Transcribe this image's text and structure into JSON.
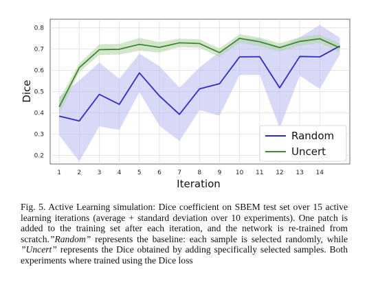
{
  "chart_data": {
    "type": "line",
    "xlabel": "Iteration",
    "ylabel": "Dice",
    "x": [
      1,
      2,
      3,
      4,
      5,
      6,
      7,
      8,
      9,
      10,
      11,
      12,
      13,
      14,
      15
    ],
    "x_tick_labels": [
      "1",
      "2",
      "3",
      "4",
      "5",
      "6",
      "7",
      "8",
      "9",
      "10",
      "11",
      "12",
      "13",
      "14"
    ],
    "y_ticks": [
      "0.2",
      "0.3",
      "0.4",
      "0.5",
      "0.6",
      "0.7",
      "0.8"
    ],
    "ylim": [
      0.16,
      0.84
    ],
    "xlim": [
      0.55,
      15.5
    ],
    "grid": true,
    "legend_position": "lower-right",
    "series": [
      {
        "name": "Random",
        "color": "#2a2ad0",
        "band_color": "#b8b8f0",
        "values": [
          0.385,
          0.362,
          0.487,
          0.44,
          0.588,
          0.48,
          0.393,
          0.513,
          0.537,
          0.663,
          0.664,
          0.518,
          0.665,
          0.663,
          0.714
        ],
        "std": [
          0.09,
          0.19,
          0.15,
          0.12,
          0.09,
          0.14,
          0.125,
          0.1,
          0.15,
          0.085,
          0.085,
          0.19,
          0.09,
          0.15,
          0.04
        ]
      },
      {
        "name": "Uncert",
        "color": "#3a8a2a",
        "band_color": "#b5d6ac",
        "values": [
          0.428,
          0.612,
          0.697,
          0.699,
          0.722,
          0.708,
          0.729,
          0.726,
          0.683,
          0.75,
          0.734,
          0.707,
          0.736,
          0.748,
          0.706
        ],
        "std": [
          0.035,
          0.02,
          0.025,
          0.025,
          0.03,
          0.025,
          0.02,
          0.02,
          0.02,
          0.02,
          0.02,
          0.02,
          0.02,
          0.02,
          0.02
        ]
      }
    ]
  },
  "caption": {
    "intro": "Fig. 5.  Active Learning simulation: Dice coefficient on SBEM test set over 15 active learning iterations (average + standard deviation over 10 experiments). One patch is added to the training set after each iteration, and the network is re-trained from scratch.",
    "random_term": "”Random”",
    "middle": " represents the baseline: each sample is selected randomly, while ",
    "uncert_term": "”Uncert”",
    "end": " represents the Dice obtained by adding specifically selected samples. Both experiments where trained using the Dice loss"
  }
}
